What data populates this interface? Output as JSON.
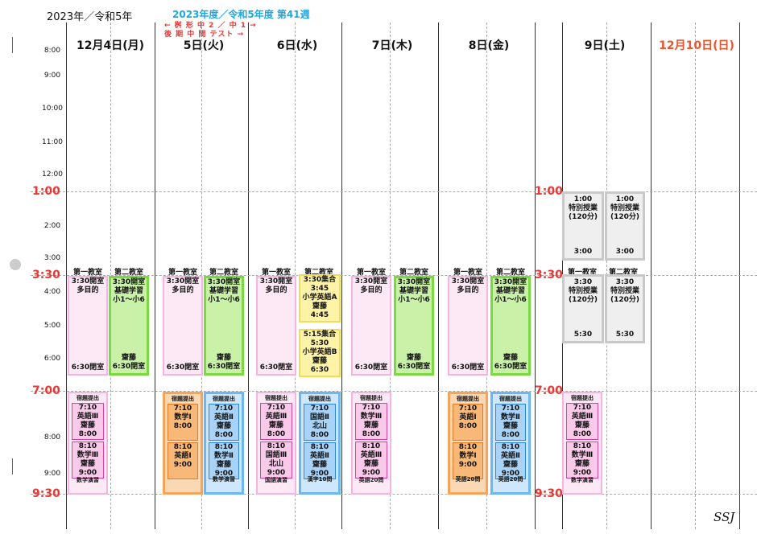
{
  "header": {
    "year": "2023年／令和5年",
    "week": "2023年度／令和5年度 第41週",
    "note1": "← 桝 形 中 2 ／ 中 1 →",
    "note2": "後 期 中 間 テスト →"
  },
  "days": [
    "12月4日(月)",
    "5日(火)",
    "6日(水)",
    "7日(木)",
    "8日(金)",
    "9日(土)",
    "12月10日(日)"
  ],
  "hours": [
    "8:00",
    "9:00",
    "10:00",
    "11:00",
    "12:00",
    "2:00",
    "3:00",
    "4:00",
    "5:00",
    "6:00",
    "8:00",
    "9:00"
  ],
  "big_times": {
    "t100": "1:00",
    "t330": "3:30",
    "t700": "7:00",
    "t930": "9:30"
  },
  "rooms": {
    "r1": "第一教室",
    "r2": "第二教室"
  },
  "weekday": {
    "open330": "3:30開室",
    "purpose": "多目的",
    "close630": "6:30閉室",
    "kiso": "基礎学習",
    "grades": "小1～小6",
    "saito": "齋藤"
  },
  "wed": {
    "a_start": "3:30集合",
    "a_time": "3:45",
    "a_title": "小学英語A",
    "a_teacher": "齋藤",
    "a_end": "4:45",
    "b_start": "5:15集合",
    "b_time": "5:30",
    "b_title": "小学英語B",
    "b_teacher": "齋藤",
    "b_end": "6:30"
  },
  "sat": {
    "t1": "1:00",
    "special": "特別授業",
    "mins": "(120分)",
    "e1": "3:00",
    "t2": "3:30",
    "e2": "5:30"
  },
  "eve": {
    "homework": "宿題提出",
    "t710": "7:10",
    "t800": "8:00",
    "t810": "8:10",
    "t900": "9:00",
    "eng3": "英語Ⅲ",
    "math3": "数学Ⅲ",
    "math1": "数学Ⅰ",
    "eng1": "英語Ⅰ",
    "kokugo2": "国語Ⅱ",
    "kokugo3": "国語Ⅲ",
    "math2": "数学Ⅱ",
    "eng2": "英語Ⅱ",
    "saito": "齋藤",
    "kitayama": "北山",
    "mathdrill": "数学演習",
    "kokudrill": "国語演習",
    "kanji": "漢字10問",
    "eng20": "英語20問"
  },
  "footer": {
    "sign": "SSJ"
  }
}
